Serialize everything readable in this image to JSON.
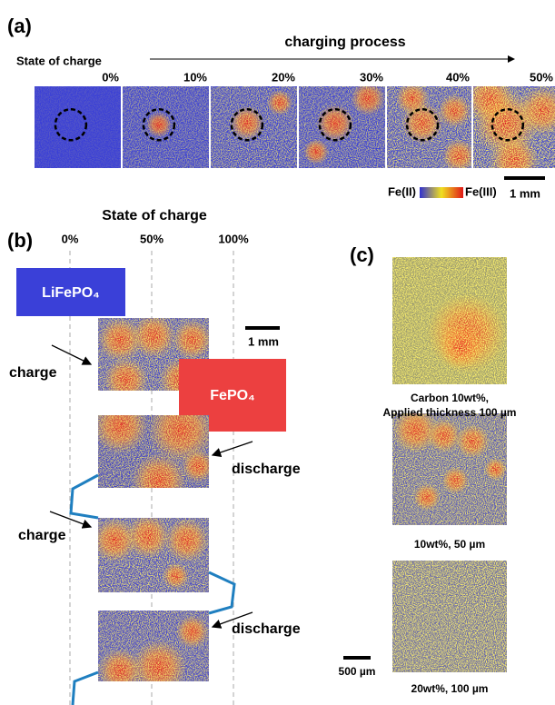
{
  "panel_a": {
    "label": "(a)",
    "process": "charging process",
    "soc_title": "State of charge",
    "soc": [
      "0%",
      "10%",
      "20%",
      "30%",
      "40%",
      "50%"
    ],
    "colorbar": {
      "low": "Fe(II)",
      "high": "Fe(III)"
    },
    "scale": "1 mm"
  },
  "panel_b": {
    "label": "(b)",
    "soc_title": "State of charge",
    "soc": [
      "0%",
      "50%",
      "100%"
    ],
    "start": "LiFePO₄",
    "end": "FePO₄",
    "scale": "1 mm",
    "steps": [
      "charge",
      "discharge",
      "charge",
      "discharge"
    ]
  },
  "panel_c": {
    "label": "(c)",
    "captions": [
      "Carbon 10wt%,",
      "Applied thickness 100 µm",
      "10wt%, 50 µm",
      "20wt%, 100 µm"
    ],
    "scale": "500 µm"
  }
}
